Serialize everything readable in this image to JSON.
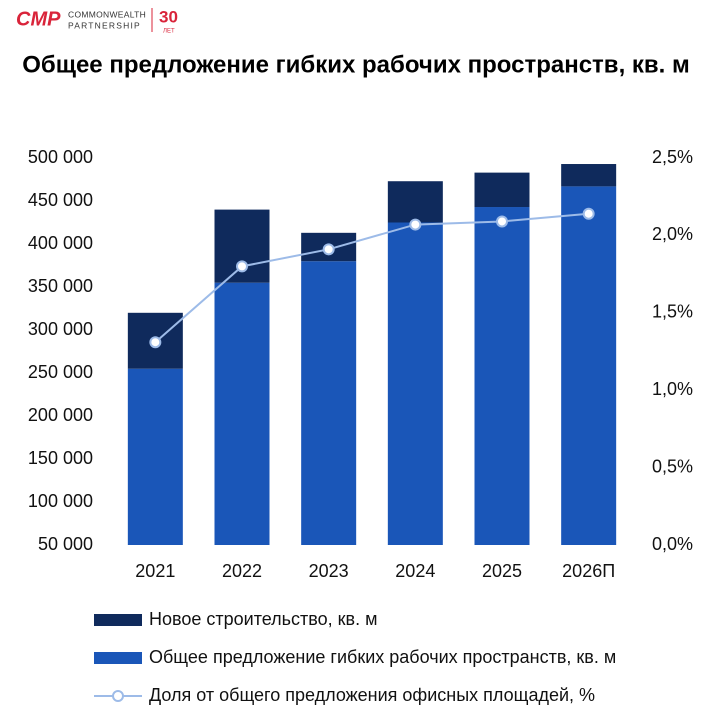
{
  "logo": {
    "mark": "CMP",
    "line1": "COMMONWEALTH",
    "line2": "PARTNERSHIP",
    "years": "30",
    "years_label": "ЛЕТ"
  },
  "chart_data": {
    "type": "bar",
    "stacked": true,
    "title": "Общее предложение гибких рабочих пространств, кв. м",
    "categories": [
      "2021",
      "2022",
      "2023",
      "2024",
      "2025",
      "2026П"
    ],
    "series": [
      {
        "name": "Новое строительство, кв. м",
        "color": "#0f2a5c",
        "values": [
          65000,
          85000,
          33000,
          48000,
          40000,
          26000
        ]
      },
      {
        "name": "Общее предложение гибких рабочих пространств, кв. м",
        "color": "#1a56b8",
        "values": [
          255000,
          355000,
          380000,
          425000,
          443000,
          467000
        ]
      },
      {
        "name": "Доля от общего предложения офисных площадей, %",
        "color": "#9dbbe8",
        "type": "line",
        "axis": "y2",
        "values": [
          1.31,
          1.8,
          1.91,
          2.07,
          2.09,
          2.14
        ]
      }
    ],
    "ylim": [
      50000,
      500000
    ],
    "yticks": [
      {
        "value": 50000,
        "label": "50 000"
      },
      {
        "value": 100000,
        "label": "100 000"
      },
      {
        "value": 150000,
        "label": "150 000"
      },
      {
        "value": 200000,
        "label": "200 000"
      },
      {
        "value": 250000,
        "label": "250 000"
      },
      {
        "value": 300000,
        "label": "300 000"
      },
      {
        "value": 350000,
        "label": "350 000"
      },
      {
        "value": 400000,
        "label": "400 000"
      },
      {
        "value": 450000,
        "label": "450 000"
      },
      {
        "value": 500000,
        "label": "500 000"
      }
    ],
    "y2lim": [
      0,
      2.5
    ],
    "y2ticks": [
      {
        "value": 0,
        "label": "0,0%"
      },
      {
        "value": 0.5,
        "label": "0,5%"
      },
      {
        "value": 1,
        "label": "1,0%"
      },
      {
        "value": 1.5,
        "label": "1,5%"
      },
      {
        "value": 2,
        "label": "2,0%"
      },
      {
        "value": 2.5,
        "label": "2,5%"
      }
    ],
    "grid": false
  }
}
